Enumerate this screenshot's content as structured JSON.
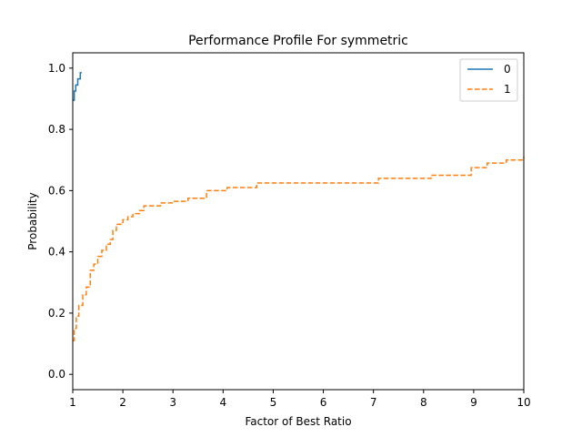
{
  "chart_data": {
    "type": "line",
    "title": "Performance Profile For symmetric",
    "xlabel": "Factor of Best Ratio",
    "ylabel": "Probability",
    "xlim": [
      1,
      10
    ],
    "ylim": [
      -0.05,
      1.05
    ],
    "xticks": [
      "1",
      "2",
      "3",
      "4",
      "5",
      "6",
      "7",
      "8",
      "9",
      "10"
    ],
    "xtick_values": [
      1,
      2,
      3,
      4,
      5,
      6,
      7,
      8,
      9,
      10
    ],
    "yticks": [
      "0.0",
      "0.2",
      "0.4",
      "0.6",
      "0.8",
      "1.0"
    ],
    "ytick_values": [
      0.0,
      0.2,
      0.4,
      0.6,
      0.8,
      1.0
    ],
    "grid": false,
    "legend_position": "top-right",
    "step": true,
    "series": [
      {
        "name": "0",
        "color": "#1f77b4",
        "dash": "solid",
        "x": [
          1.0,
          1.03,
          1.06,
          1.1,
          1.15,
          1.18
        ],
        "y": [
          0.895,
          0.925,
          0.945,
          0.965,
          0.985,
          0.985
        ]
      },
      {
        "name": "1",
        "color": "#ff7f0e",
        "dash": "dashed",
        "x": [
          1.0,
          1.03,
          1.07,
          1.12,
          1.2,
          1.27,
          1.35,
          1.42,
          1.5,
          1.58,
          1.67,
          1.75,
          1.8,
          1.87,
          2.0,
          2.1,
          2.2,
          2.33,
          2.42,
          2.75,
          3.0,
          3.3,
          3.67,
          4.08,
          4.67,
          7.1,
          8.15,
          8.95,
          9.27,
          9.65,
          10.0
        ],
        "y": [
          0.11,
          0.15,
          0.19,
          0.225,
          0.26,
          0.285,
          0.34,
          0.36,
          0.385,
          0.405,
          0.425,
          0.44,
          0.47,
          0.49,
          0.505,
          0.515,
          0.525,
          0.535,
          0.55,
          0.56,
          0.565,
          0.575,
          0.6,
          0.61,
          0.625,
          0.64,
          0.65,
          0.675,
          0.69,
          0.7,
          0.71
        ]
      }
    ]
  }
}
